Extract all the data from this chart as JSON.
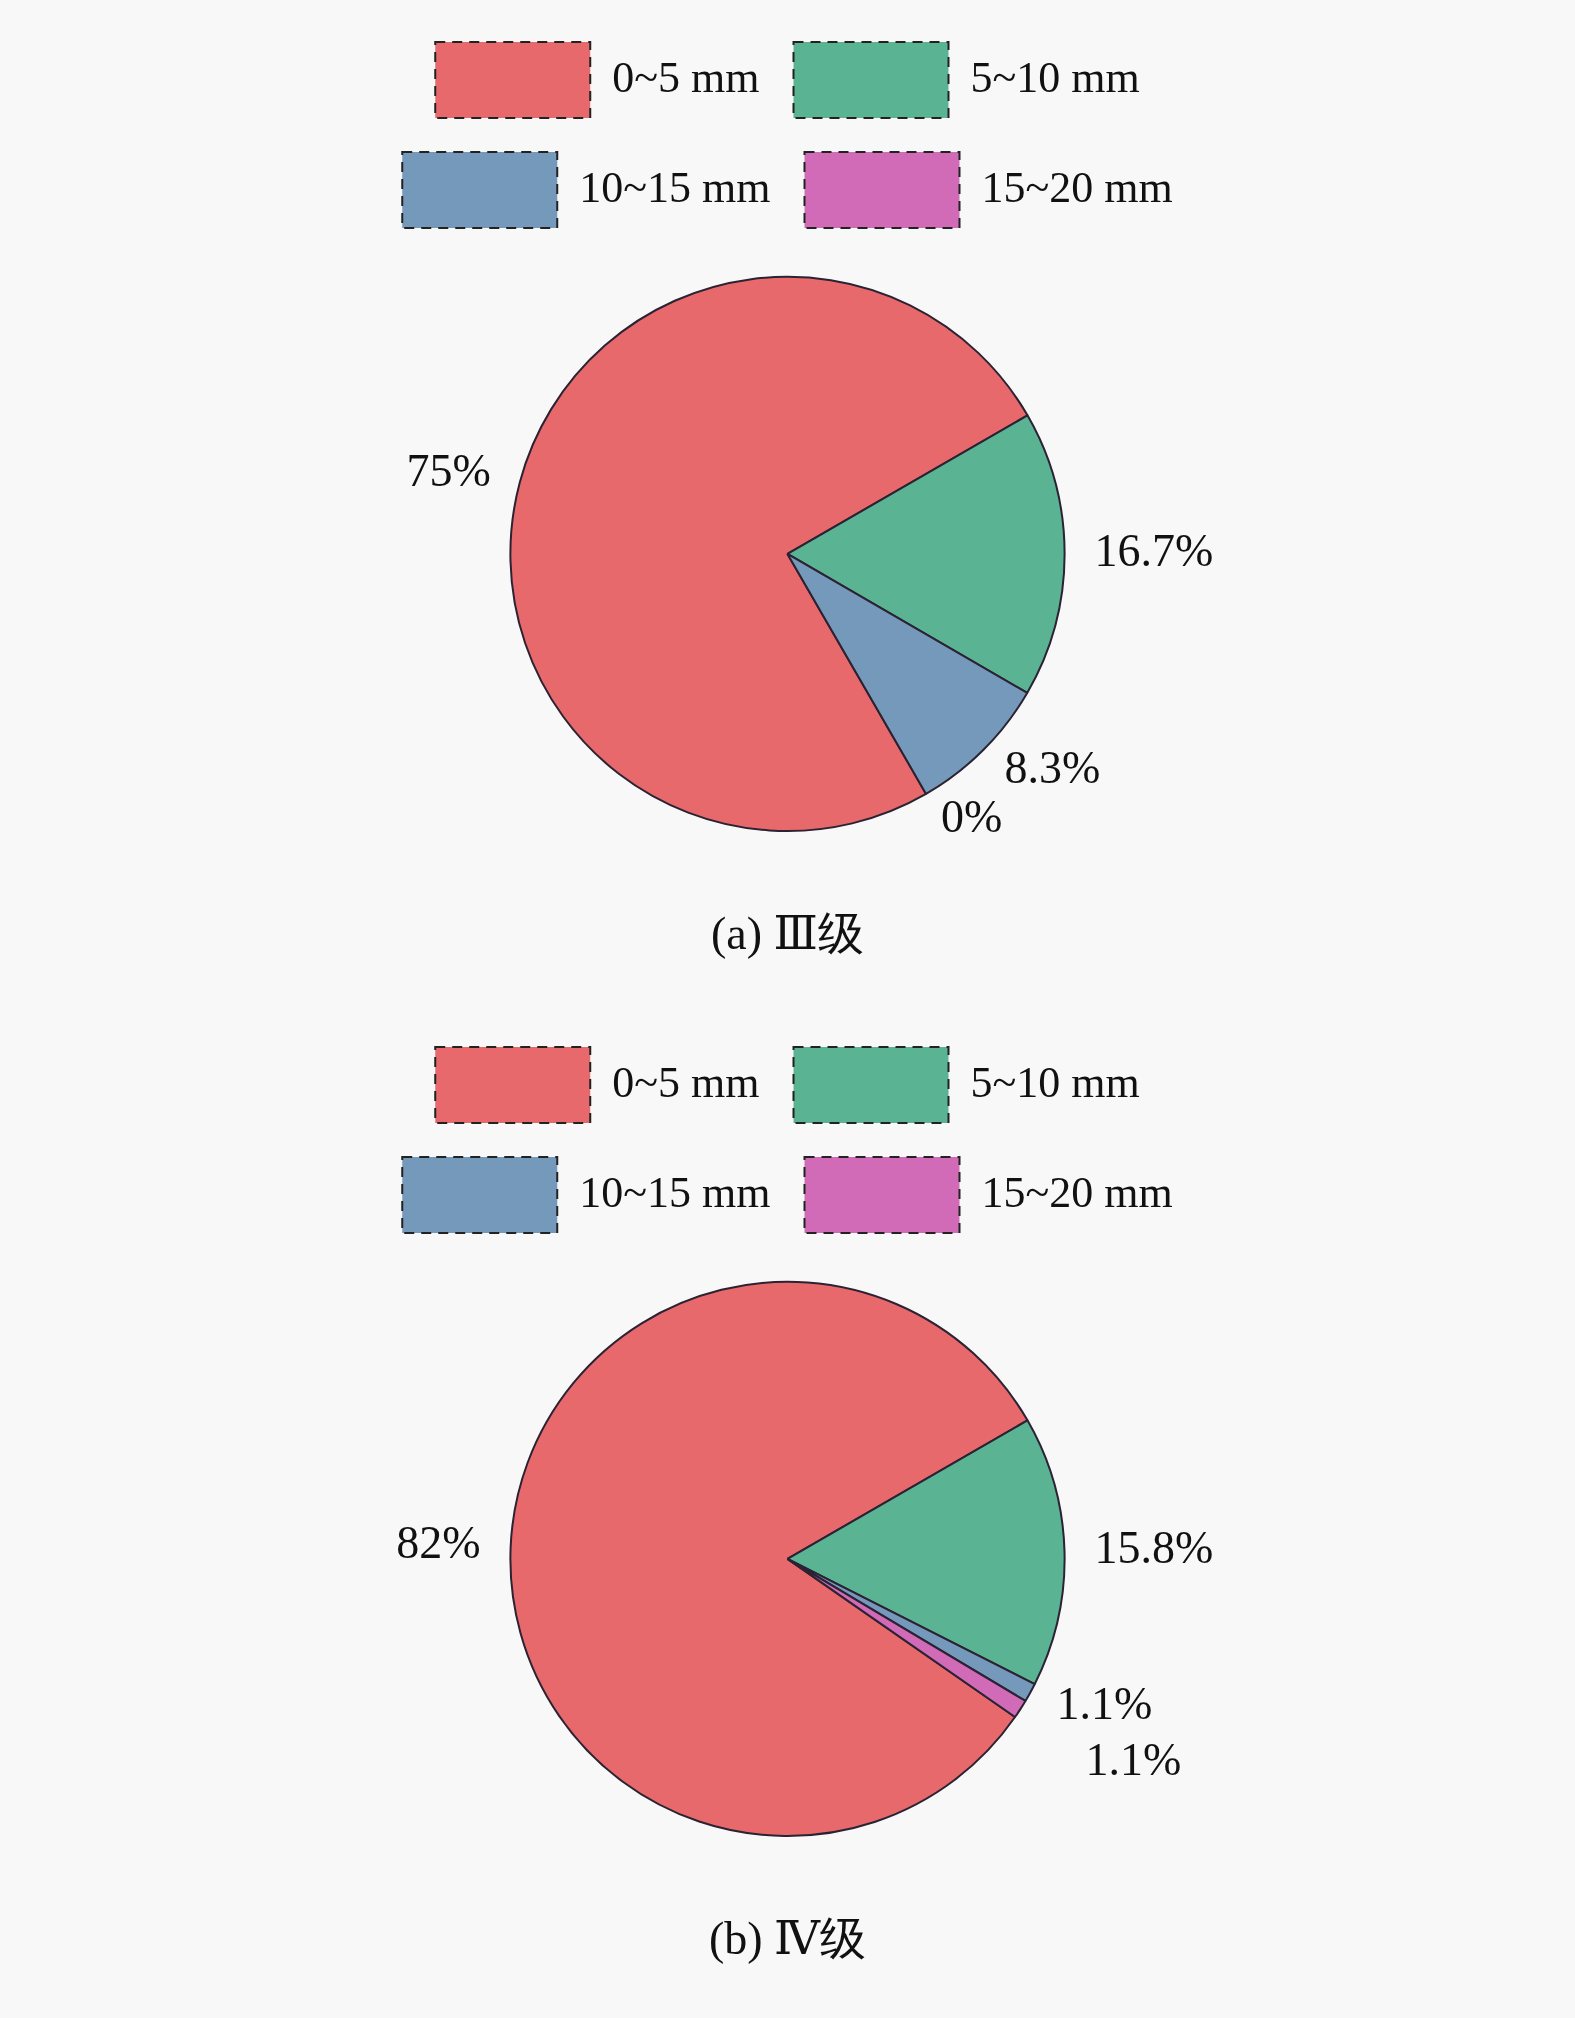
{
  "chart_data": [
    {
      "type": "pie",
      "title": "(a) Ⅲ级",
      "categories": [
        "0~5 mm",
        "5~10 mm",
        "10~15 mm",
        "15~20 mm"
      ],
      "values": [
        75,
        16.7,
        8.3,
        0
      ],
      "colors": [
        "#e8696b",
        "#5ab393",
        "#7599bb",
        "#d16bb8"
      ],
      "value_labels": [
        "75%",
        "16.7%",
        "8.3%",
        "0%"
      ],
      "legend": "top"
    },
    {
      "type": "pie",
      "title": "(b) Ⅳ级",
      "categories": [
        "0~5 mm",
        "5~10 mm",
        "10~15 mm",
        "15~20 mm"
      ],
      "values": [
        82,
        15.8,
        1.1,
        1.1
      ],
      "colors": [
        "#e8696b",
        "#5ab393",
        "#7599bb",
        "#d16bb8"
      ],
      "value_labels": [
        "82%",
        "15.8%",
        "1.1%",
        "1.1%"
      ],
      "legend": "top"
    }
  ]
}
